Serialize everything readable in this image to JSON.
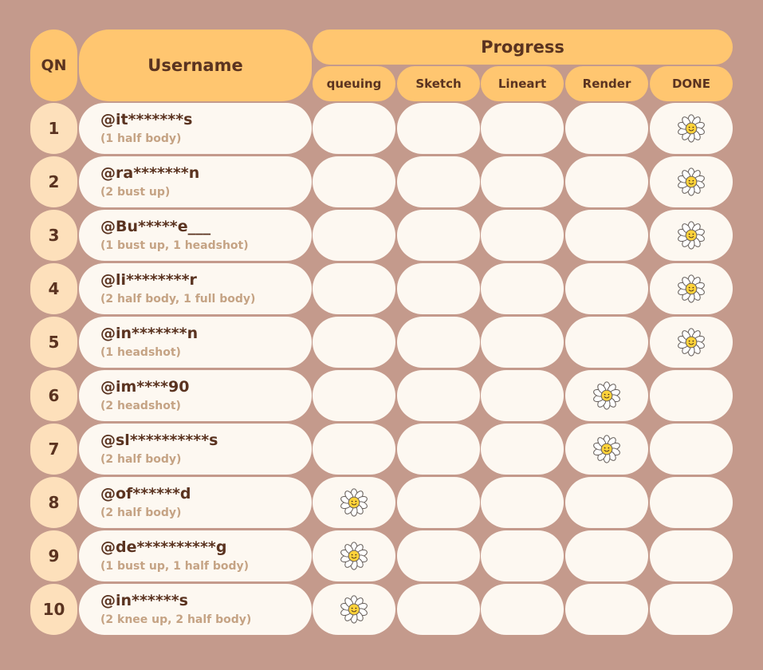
{
  "header": {
    "qn_label": "QN",
    "username_label": "Username",
    "progress_label": "Progress",
    "stages": [
      "queuing",
      "Sketch",
      "Lineart",
      "Render",
      "DONE"
    ]
  },
  "rows": [
    {
      "qn": "1",
      "username": "@it*******s",
      "order": "(1 half body)",
      "stage": "DONE"
    },
    {
      "qn": "2",
      "username": "@ra*******n",
      "order": "(2 bust up)",
      "stage": "DONE"
    },
    {
      "qn": "3",
      "username": "@Bu*****e___",
      "order": "(1 bust up, 1 headshot)",
      "stage": "DONE"
    },
    {
      "qn": "4",
      "username": "@li********r",
      "order": "(2 half body, 1 full body)",
      "stage": "DONE"
    },
    {
      "qn": "5",
      "username": "@in*******n",
      "order": "(1 headshot)",
      "stage": "DONE"
    },
    {
      "qn": "6",
      "username": "@im****90",
      "order": "(2 headshot)",
      "stage": "Render"
    },
    {
      "qn": "7",
      "username": "@sl**********s",
      "order": "(2 half body)",
      "stage": "Render"
    },
    {
      "qn": "8",
      "username": "@of******d",
      "order": "(2 half body)",
      "stage": "queuing"
    },
    {
      "qn": "9",
      "username": "@de**********g",
      "order": "(1 bust up, 1 half body)",
      "stage": "queuing"
    },
    {
      "qn": "10",
      "username": "@in******s",
      "order": "(2 knee up, 2 half body)",
      "stage": "queuing"
    }
  ],
  "marker_icon": "daisy-smiley-icon",
  "colors": {
    "background": "#c49a8c",
    "header": "#ffc670",
    "qn_cell": "#fde0bb",
    "cell": "#fdf8f1",
    "text_dark": "#5a3320",
    "text_sub": "#c5a384"
  }
}
